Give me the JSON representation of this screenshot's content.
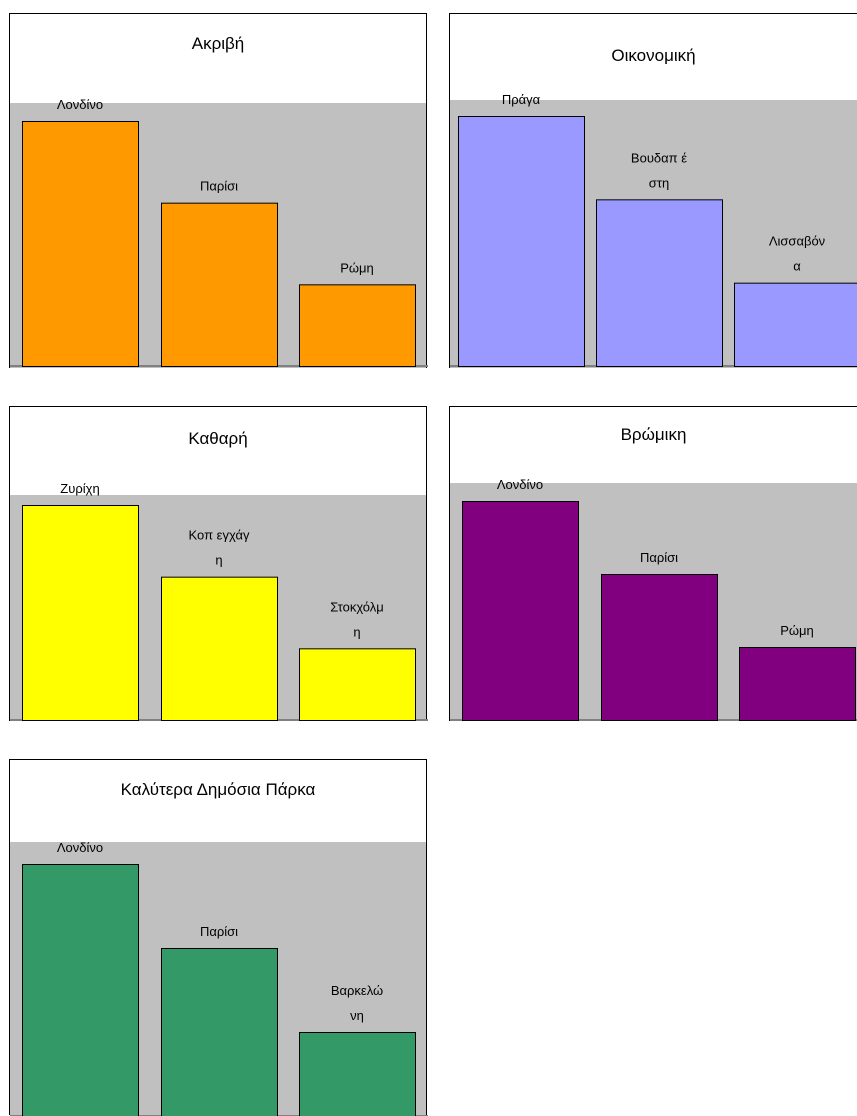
{
  "chart_data": [
    {
      "type": "bar",
      "title": "Ακριβή",
      "color": "#ff9900",
      "categories": [
        "Λονδίνο",
        "Παρίσι",
        "Ρώμη"
      ],
      "label_lines": [
        [
          "Λονδίνο"
        ],
        [
          "Παρίσι"
        ],
        [
          "Ρώμη"
        ]
      ],
      "values": [
        3,
        2,
        1
      ],
      "ylim": [
        0,
        3.3
      ],
      "legend": false,
      "grid": false
    },
    {
      "type": "bar",
      "title": "Οικονομική",
      "color": "#9999ff",
      "categories": [
        "Πράγα",
        "Βουδαπέστη",
        "Λισσαβόνα"
      ],
      "label_lines": [
        [
          "Πράγα"
        ],
        [
          "Βουδαπ έ",
          "στη"
        ],
        [
          "Λισσαβόν",
          "α"
        ]
      ],
      "values": [
        3,
        2,
        1
      ],
      "ylim": [
        0,
        3.3
      ],
      "legend": false,
      "grid": false
    },
    {
      "type": "bar",
      "title": "Καθαρή",
      "color": "#ffff00",
      "categories": [
        "Ζυρίχη",
        "Κοπεγχάγη",
        "Στοκχόλμη"
      ],
      "label_lines": [
        [
          "Ζυρίχη"
        ],
        [
          "Κοπ εγχάγ",
          "η"
        ],
        [
          "Στοκχόλμ",
          "η"
        ]
      ],
      "values": [
        3,
        2,
        1
      ],
      "ylim": [
        0,
        3.3
      ],
      "legend": false,
      "grid": false
    },
    {
      "type": "bar",
      "title": "Βρώμικη",
      "color": "#800080",
      "categories": [
        "Λονδίνο",
        "Παρίσι",
        "Ρώμη"
      ],
      "label_lines": [
        [
          "Λονδίνο"
        ],
        [
          "Παρίσι"
        ],
        [
          "Ρώμη"
        ]
      ],
      "values": [
        3,
        2,
        1
      ],
      "ylim": [
        0,
        3.3
      ],
      "legend": false,
      "grid": false
    },
    {
      "type": "bar",
      "title": "Καλύτερα Δημόσια Πάρκα",
      "color": "#339966",
      "categories": [
        "Λονδίνο",
        "Παρίσι",
        "Βαρκελώνη"
      ],
      "label_lines": [
        [
          "Λονδίνο"
        ],
        [
          "Παρίσι"
        ],
        [
          "Βαρκελώ",
          "νη"
        ]
      ],
      "values": [
        3,
        2,
        1
      ],
      "ylim": [
        0,
        3.3
      ],
      "legend": false,
      "grid": false
    }
  ]
}
